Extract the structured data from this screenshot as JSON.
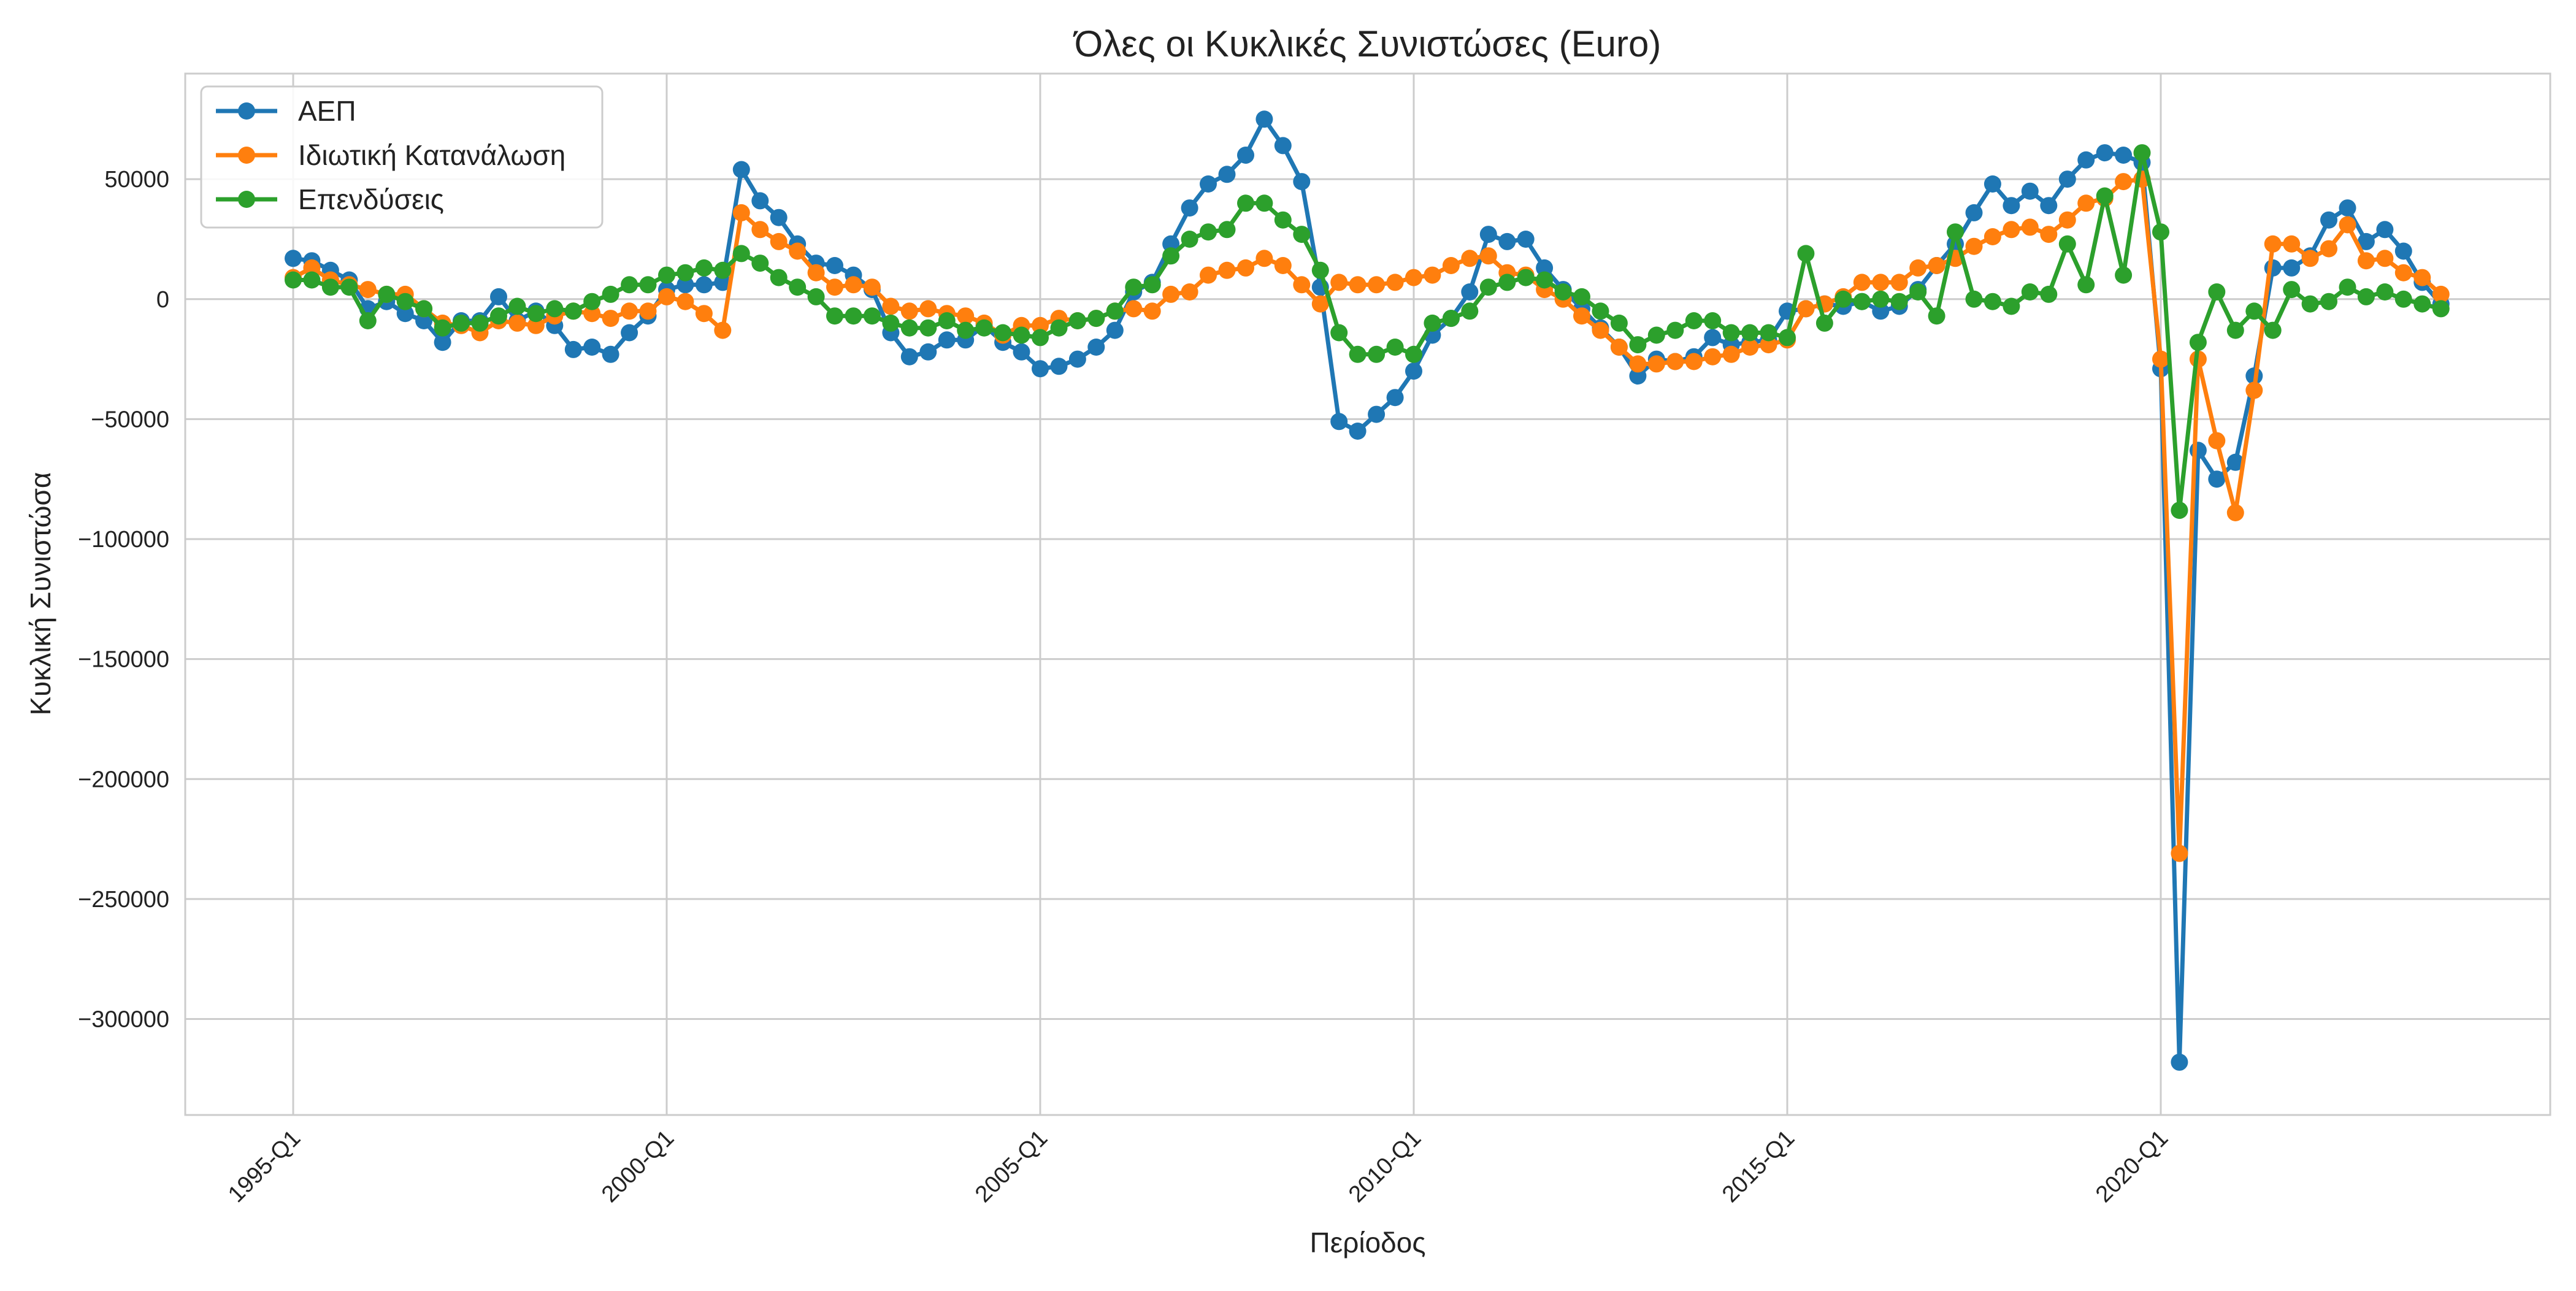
{
  "chart_data": {
    "type": "line",
    "title": "Όλες οι Κυκλικές Συνιστώσες (Euro)",
    "xlabel": "Περίοδος",
    "ylabel": "Κυκλική Συνιστώσα",
    "x_start": "1995-Q1",
    "x_tick_labels": [
      "1995-Q1",
      "2000-Q1",
      "2005-Q1",
      "2010-Q1",
      "2015-Q1",
      "2020-Q1"
    ],
    "y_ticks": [
      50000,
      0,
      -50000,
      -100000,
      -150000,
      -200000,
      -250000,
      -300000
    ],
    "y_tick_labels": [
      "50000",
      "0",
      "−50000",
      "−100000",
      "−150000",
      "−200000",
      "−250000",
      "−300000"
    ],
    "ylim": [
      -340000,
      94000
    ],
    "grid": true,
    "legend": "top-left",
    "series": [
      {
        "name": "ΑΕΠ",
        "color": "#1f77b4",
        "values": [
          17000,
          16000,
          12000,
          8000,
          -4000,
          -1000,
          -6000,
          -9000,
          -18000,
          -9000,
          -9000,
          1000,
          -9000,
          -5000,
          -11000,
          -21000,
          -20000,
          -23000,
          -14000,
          -7000,
          4000,
          6000,
          6000,
          7000,
          54000,
          41000,
          34000,
          23000,
          15000,
          14000,
          10000,
          4000,
          -14000,
          -24000,
          -22000,
          -17000,
          -17000,
          -11000,
          -18000,
          -22000,
          -29000,
          -28000,
          -25000,
          -20000,
          -13000,
          3000,
          7000,
          23000,
          38000,
          48000,
          52000,
          60000,
          75000,
          64000,
          49000,
          5000,
          -51000,
          -55000,
          -48000,
          -41000,
          -30000,
          -15000,
          -8000,
          3000,
          27000,
          24000,
          25000,
          13000,
          4000,
          -4000,
          -12000,
          -20000,
          -32000,
          -25000,
          -26000,
          -24000,
          -16000,
          -19000,
          -18000,
          -17000,
          -5000,
          -4000,
          -2000,
          -3000,
          -1000,
          -5000,
          -3000,
          4000,
          14000,
          23000,
          36000,
          48000,
          39000,
          45000,
          39000,
          50000,
          58000,
          61000,
          60000,
          57000,
          -29000,
          -318000,
          -63000,
          -75000,
          -68000,
          -32000,
          13000,
          13000,
          18000,
          33000,
          38000,
          24000,
          29000,
          20000,
          7000,
          -2000
        ],
        "marker": "circle"
      },
      {
        "name": "Ιδιωτική Κατανάλωση",
        "color": "#ff7f0e",
        "values": [
          9000,
          13000,
          8000,
          6000,
          4000,
          2000,
          2000,
          -4000,
          -10000,
          -11000,
          -14000,
          -9000,
          -10000,
          -11000,
          -7000,
          -5000,
          -6000,
          -8000,
          -5000,
          -5000,
          1000,
          -1000,
          -6000,
          -13000,
          36000,
          29000,
          24000,
          20000,
          11000,
          5000,
          6000,
          5000,
          -3000,
          -5000,
          -4000,
          -6000,
          -7000,
          -10000,
          -15000,
          -11000,
          -11000,
          -8000,
          -9000,
          -8000,
          -5000,
          -4000,
          -5000,
          2000,
          3000,
          10000,
          12000,
          13000,
          17000,
          14000,
          6000,
          -2000,
          7000,
          6000,
          6000,
          7000,
          9000,
          10000,
          14000,
          17000,
          18000,
          11000,
          10000,
          4000,
          0,
          -7000,
          -13000,
          -20000,
          -27000,
          -27000,
          -26000,
          -26000,
          -24000,
          -23000,
          -20000,
          -19000,
          -17000,
          -4000,
          -2000,
          1000,
          7000,
          7000,
          7000,
          13000,
          14000,
          17000,
          22000,
          26000,
          29000,
          30000,
          27000,
          33000,
          40000,
          42000,
          49000,
          50000,
          -25000,
          -231000,
          -25000,
          -59000,
          -89000,
          -38000,
          23000,
          23000,
          17000,
          21000,
          31000,
          16000,
          17000,
          11000,
          9000,
          2000
        ],
        "marker": "circle"
      },
      {
        "name": "Επενδύσεις",
        "color": "#2ca02c",
        "values": [
          8000,
          8000,
          5000,
          5000,
          -9000,
          2000,
          -1000,
          -4000,
          -12000,
          -10000,
          -10000,
          -7000,
          -3000,
          -6000,
          -4000,
          -5000,
          -1000,
          2000,
          6000,
          6000,
          10000,
          11000,
          13000,
          12000,
          19000,
          15000,
          9000,
          5000,
          1000,
          -7000,
          -7000,
          -7000,
          -10000,
          -12000,
          -12000,
          -9000,
          -13000,
          -12000,
          -14000,
          -15000,
          -16000,
          -12000,
          -9000,
          -8000,
          -5000,
          5000,
          6000,
          18000,
          25000,
          28000,
          29000,
          40000,
          40000,
          33000,
          27000,
          12000,
          -14000,
          -23000,
          -23000,
          -20000,
          -23000,
          -10000,
          -8000,
          -5000,
          5000,
          7000,
          9000,
          8000,
          3000,
          1000,
          -5000,
          -10000,
          -19000,
          -15000,
          -13000,
          -9000,
          -9000,
          -14000,
          -14000,
          -14000,
          -16000,
          19000,
          -10000,
          0,
          -1000,
          0,
          -1000,
          3000,
          -7000,
          28000,
          0,
          -1000,
          -3000,
          3000,
          2000,
          23000,
          6000,
          43000,
          10000,
          61000,
          28000,
          -88000,
          -18000,
          3000,
          -13000,
          -5000,
          -13000,
          4000,
          -2000,
          -1000,
          5000,
          1000,
          3000,
          0,
          -2000,
          -4000
        ],
        "marker": "circle"
      }
    ]
  }
}
